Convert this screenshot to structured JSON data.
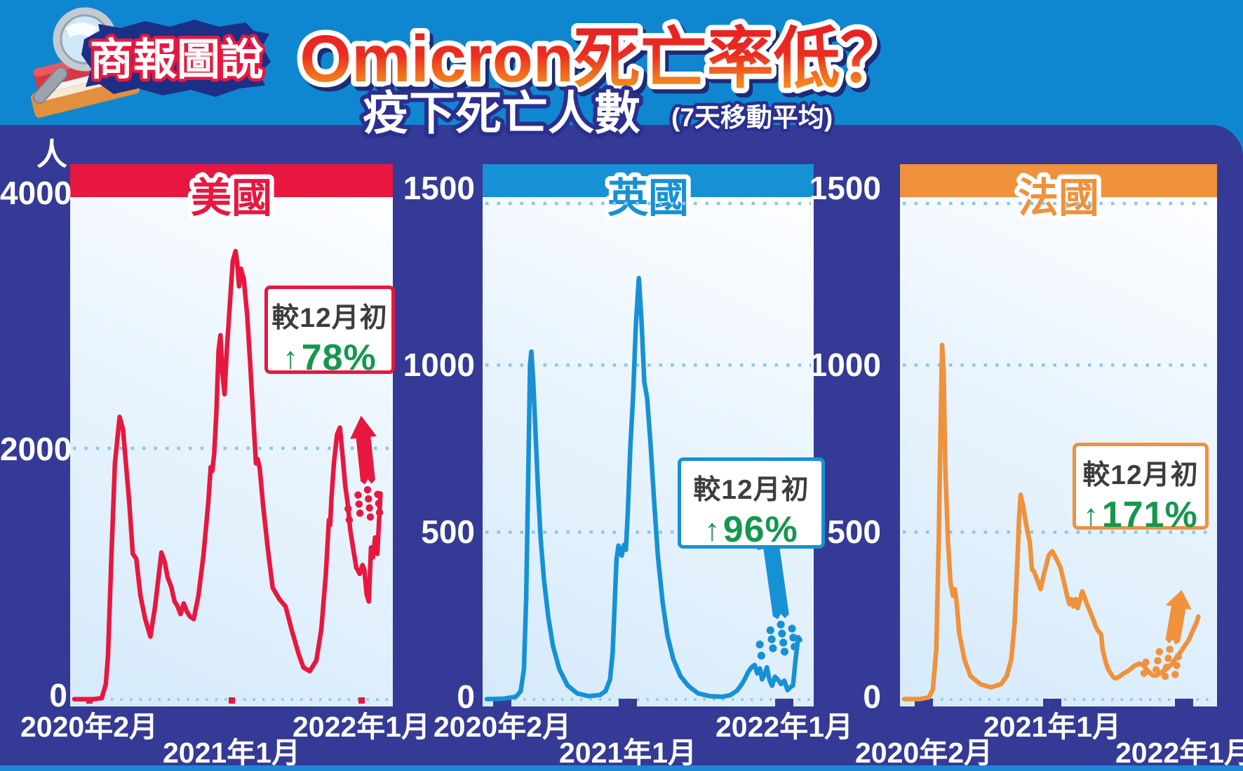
{
  "header": {
    "brand": "商報圖說",
    "title": "Omicron死亡率低？",
    "subtitle": "疫下死亡人數",
    "subtitle_note": "(7天移動平均)"
  },
  "y_axis_unit": "人",
  "colors": {
    "header_blue": "#0f86d0",
    "panel_blue": "#343a95",
    "bottom_strip_blue": "#1e87d8",
    "usa_red": "#e8173f",
    "uk_blue": "#1791d5",
    "france_orange": "#f0913c",
    "green": "#13984d",
    "grid_dot_blue": "#8cc6ec",
    "annotation_text": "#3d3d3d",
    "title_gradient_top": "#e61e25",
    "title_gradient_bottom": "#f9a11b"
  },
  "chart_data": [
    {
      "type": "line",
      "id": "usa",
      "title": "美國",
      "color": "#e8173f",
      "unit": "人",
      "ylim": [
        0,
        4000
      ],
      "ytick_labels": [
        "4000",
        "2000",
        "0"
      ],
      "ytick_values": [
        4000,
        2000,
        0
      ],
      "gridline_values": [
        2000,
        0
      ],
      "x_tick_labels": [
        "2020年2月",
        "2021年1月",
        "2022年1月"
      ],
      "x_range_note": "x = fraction of span Feb 2020 to Jan 2022",
      "annotation": {
        "label": "較12月初",
        "arrow": "↑",
        "value": "78%"
      },
      "points": [
        [
          0,
          2
        ],
        [
          0.06,
          2
        ],
        [
          0.087,
          10
        ],
        [
          0.1,
          120
        ],
        [
          0.107,
          340
        ],
        [
          0.118,
          1150
        ],
        [
          0.129,
          1880
        ],
        [
          0.144,
          2250
        ],
        [
          0.155,
          2150
        ],
        [
          0.164,
          1880
        ],
        [
          0.175,
          1560
        ],
        [
          0.186,
          1160
        ],
        [
          0.197,
          1120
        ],
        [
          0.21,
          830
        ],
        [
          0.225,
          645
        ],
        [
          0.242,
          500
        ],
        [
          0.257,
          740
        ],
        [
          0.277,
          1170
        ],
        [
          0.288,
          1090
        ],
        [
          0.297,
          970
        ],
        [
          0.308,
          900
        ],
        [
          0.319,
          780
        ],
        [
          0.328,
          745
        ],
        [
          0.338,
          680
        ],
        [
          0.348,
          765
        ],
        [
          0.358,
          700
        ],
        [
          0.368,
          660
        ],
        [
          0.38,
          640
        ],
        [
          0.395,
          830
        ],
        [
          0.411,
          1150
        ],
        [
          0.426,
          1560
        ],
        [
          0.434,
          1850
        ],
        [
          0.439,
          1820
        ],
        [
          0.445,
          1960
        ],
        [
          0.452,
          2290
        ],
        [
          0.459,
          2780
        ],
        [
          0.465,
          2900
        ],
        [
          0.471,
          2610
        ],
        [
          0.478,
          2430
        ],
        [
          0.485,
          2780
        ],
        [
          0.496,
          3190
        ],
        [
          0.504,
          3490
        ],
        [
          0.513,
          3570
        ],
        [
          0.518,
          3480
        ],
        [
          0.524,
          3290
        ],
        [
          0.53,
          3430
        ],
        [
          0.539,
          3350
        ],
        [
          0.55,
          3060
        ],
        [
          0.559,
          2700
        ],
        [
          0.57,
          2210
        ],
        [
          0.578,
          1880
        ],
        [
          0.583,
          1915
        ],
        [
          0.59,
          1840
        ],
        [
          0.6,
          1560
        ],
        [
          0.616,
          1190
        ],
        [
          0.631,
          890
        ],
        [
          0.652,
          800
        ],
        [
          0.672,
          740
        ],
        [
          0.693,
          540
        ],
        [
          0.714,
          360
        ],
        [
          0.729,
          255
        ],
        [
          0.749,
          225
        ],
        [
          0.77,
          310
        ],
        [
          0.786,
          560
        ],
        [
          0.8,
          990
        ],
        [
          0.81,
          1430
        ],
        [
          0.814,
          1390
        ],
        [
          0.818,
          1600
        ],
        [
          0.826,
          1880
        ],
        [
          0.836,
          2110
        ],
        [
          0.845,
          2165
        ],
        [
          0.853,
          1960
        ],
        [
          0.862,
          1700
        ],
        [
          0.87,
          1555
        ],
        [
          0.878,
          1350
        ],
        [
          0.888,
          1190
        ],
        [
          0.897,
          1050
        ],
        [
          0.908,
          1000
        ],
        [
          0.917,
          1070
        ],
        [
          0.923,
          1030
        ],
        [
          0.93,
          840
        ],
        [
          0.937,
          780
        ],
        [
          0.944,
          1210
        ],
        [
          0.95,
          1130
        ],
        [
          0.957,
          1290
        ],
        [
          0.964,
          1160
        ],
        [
          0.974,
          1640
        ]
      ]
    },
    {
      "type": "line",
      "id": "uk",
      "title": "英國",
      "color": "#1791d5",
      "unit": "人",
      "ylim": [
        0,
        1500
      ],
      "ytick_labels": [
        "1500",
        "1000",
        "500",
        "0"
      ],
      "ytick_values": [
        1500,
        1000,
        500,
        0
      ],
      "gridline_values": [
        1500,
        1000,
        500,
        0
      ],
      "x_tick_labels": [
        "2020年2月",
        "2021年1月",
        "2022年1月"
      ],
      "x_range_note": "x = fraction of span Feb 2020 to Jan 2022",
      "annotation": {
        "label": "較12月初",
        "arrow": "↑",
        "value": "96%"
      },
      "points": [
        [
          0,
          1
        ],
        [
          0.05,
          2
        ],
        [
          0.09,
          8
        ],
        [
          0.105,
          25
        ],
        [
          0.115,
          90
        ],
        [
          0.122,
          300
        ],
        [
          0.128,
          650
        ],
        [
          0.134,
          1000
        ],
        [
          0.138,
          1040
        ],
        [
          0.144,
          950
        ],
        [
          0.15,
          820
        ],
        [
          0.158,
          640
        ],
        [
          0.167,
          480
        ],
        [
          0.177,
          360
        ],
        [
          0.19,
          250
        ],
        [
          0.205,
          160
        ],
        [
          0.225,
          90
        ],
        [
          0.25,
          42
        ],
        [
          0.28,
          18
        ],
        [
          0.315,
          10
        ],
        [
          0.35,
          13
        ],
        [
          0.368,
          25
        ],
        [
          0.382,
          60
        ],
        [
          0.39,
          140
        ],
        [
          0.396,
          280
        ],
        [
          0.402,
          420
        ],
        [
          0.408,
          460
        ],
        [
          0.418,
          430
        ],
        [
          0.425,
          462
        ],
        [
          0.431,
          448
        ],
        [
          0.437,
          560
        ],
        [
          0.445,
          760
        ],
        [
          0.453,
          900
        ],
        [
          0.462,
          1120
        ],
        [
          0.471,
          1260
        ],
        [
          0.479,
          1140
        ],
        [
          0.488,
          950
        ],
        [
          0.497,
          900
        ],
        [
          0.507,
          770
        ],
        [
          0.518,
          600
        ],
        [
          0.53,
          430
        ],
        [
          0.545,
          290
        ],
        [
          0.56,
          190
        ],
        [
          0.578,
          120
        ],
        [
          0.6,
          70
        ],
        [
          0.625,
          40
        ],
        [
          0.655,
          18
        ],
        [
          0.69,
          10
        ],
        [
          0.73,
          8
        ],
        [
          0.755,
          13
        ],
        [
          0.775,
          26
        ],
        [
          0.79,
          45
        ],
        [
          0.8,
          62
        ],
        [
          0.81,
          82
        ],
        [
          0.82,
          96
        ],
        [
          0.83,
          103
        ],
        [
          0.838,
          78
        ],
        [
          0.846,
          93
        ],
        [
          0.853,
          60
        ],
        [
          0.861,
          76
        ],
        [
          0.868,
          96
        ],
        [
          0.876,
          58
        ],
        [
          0.884,
          41
        ],
        [
          0.893,
          68
        ],
        [
          0.903,
          58
        ],
        [
          0.912,
          46
        ],
        [
          0.922,
          56
        ],
        [
          0.932,
          28
        ],
        [
          0.94,
          36
        ],
        [
          0.949,
          42
        ],
        [
          0.957,
          120
        ],
        [
          0.965,
          186
        ],
        [
          0.971,
          178
        ]
      ]
    },
    {
      "type": "line",
      "id": "france",
      "title": "法國",
      "color": "#f0913c",
      "unit": "人",
      "ylim": [
        0,
        1500
      ],
      "ytick_labels": [
        "1500",
        "1000",
        "500",
        "0"
      ],
      "ytick_values": [
        1500,
        1000,
        500,
        0
      ],
      "gridline_values": [
        1500,
        1000,
        500,
        0
      ],
      "x_tick_labels": [
        "2020年2月",
        "2021年1月",
        "2022年1月"
      ],
      "x_range_note": "x = fraction of span Feb 2020 to Jan 2022",
      "annotation": {
        "label": "較12月初",
        "arrow": "↑",
        "value": "171%"
      },
      "points": [
        [
          0,
          1
        ],
        [
          0.05,
          1
        ],
        [
          0.08,
          6
        ],
        [
          0.093,
          30
        ],
        [
          0.104,
          150
        ],
        [
          0.112,
          480
        ],
        [
          0.118,
          820
        ],
        [
          0.123,
          1060
        ],
        [
          0.128,
          980
        ],
        [
          0.133,
          700
        ],
        [
          0.142,
          470
        ],
        [
          0.15,
          350
        ],
        [
          0.158,
          310
        ],
        [
          0.164,
          330
        ],
        [
          0.17,
          290
        ],
        [
          0.178,
          200
        ],
        [
          0.195,
          120
        ],
        [
          0.215,
          70
        ],
        [
          0.248,
          45
        ],
        [
          0.281,
          36
        ],
        [
          0.314,
          46
        ],
        [
          0.332,
          70
        ],
        [
          0.347,
          120
        ],
        [
          0.358,
          230
        ],
        [
          0.367,
          420
        ],
        [
          0.372,
          540
        ],
        [
          0.377,
          612
        ],
        [
          0.385,
          580
        ],
        [
          0.393,
          535
        ],
        [
          0.4,
          500
        ],
        [
          0.407,
          470
        ],
        [
          0.414,
          388
        ],
        [
          0.42,
          384
        ],
        [
          0.43,
          360
        ],
        [
          0.442,
          330
        ],
        [
          0.452,
          372
        ],
        [
          0.46,
          400
        ],
        [
          0.468,
          430
        ],
        [
          0.474,
          438
        ],
        [
          0.48,
          443
        ],
        [
          0.49,
          425
        ],
        [
          0.497,
          413
        ],
        [
          0.507,
          392
        ],
        [
          0.518,
          350
        ],
        [
          0.528,
          310
        ],
        [
          0.535,
          285
        ],
        [
          0.542,
          300
        ],
        [
          0.548,
          278
        ],
        [
          0.556,
          300
        ],
        [
          0.562,
          273
        ],
        [
          0.57,
          300
        ],
        [
          0.577,
          323
        ],
        [
          0.583,
          310
        ],
        [
          0.59,
          290
        ],
        [
          0.6,
          268
        ],
        [
          0.612,
          240
        ],
        [
          0.622,
          215
        ],
        [
          0.63,
          203
        ],
        [
          0.638,
          195
        ],
        [
          0.643,
          150
        ],
        [
          0.652,
          115
        ],
        [
          0.66,
          92
        ],
        [
          0.668,
          80
        ],
        [
          0.678,
          66
        ],
        [
          0.686,
          63
        ],
        [
          0.7,
          70
        ],
        [
          0.715,
          80
        ],
        [
          0.73,
          88
        ],
        [
          0.745,
          100
        ],
        [
          0.761,
          107
        ],
        [
          0.774,
          103
        ],
        [
          0.79,
          85
        ],
        [
          0.805,
          72
        ],
        [
          0.816,
          71
        ],
        [
          0.832,
          80
        ],
        [
          0.85,
          92
        ],
        [
          0.866,
          105
        ],
        [
          0.878,
          120
        ],
        [
          0.89,
          135
        ],
        [
          0.9,
          148
        ],
        [
          0.912,
          165
        ],
        [
          0.922,
          178
        ],
        [
          0.932,
          200
        ],
        [
          0.94,
          215
        ],
        [
          0.948,
          232
        ],
        [
          0.953,
          248
        ]
      ]
    }
  ]
}
